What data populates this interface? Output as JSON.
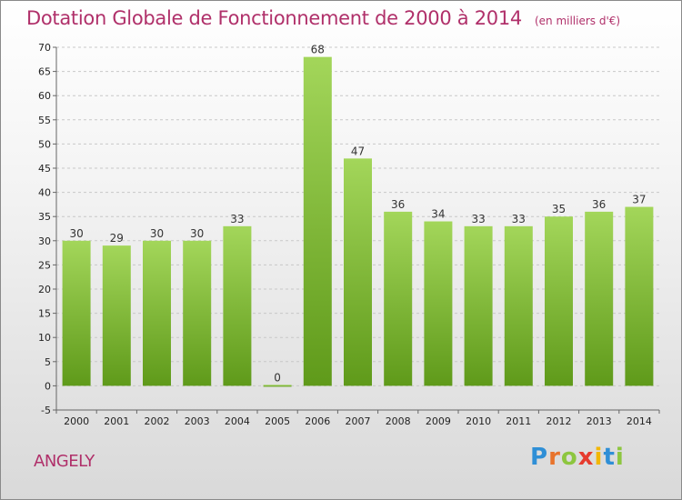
{
  "header": {
    "title": "Dotation Globale de Fonctionnement de 2000 à 2014",
    "unit": "(en milliers d'€)"
  },
  "footer": {
    "town": "ANGELY",
    "logo_letters": [
      "P",
      "r",
      "o",
      "x",
      "i",
      "t",
      "i"
    ],
    "logo_colors": [
      "#2f8fd6",
      "#e8732c",
      "#8dc63f",
      "#e63b2e",
      "#f2b705",
      "#2f8fd6",
      "#8dc63f"
    ]
  },
  "chart_data": {
    "type": "bar",
    "title": "Dotation Globale de Fonctionnement de 2000 à 2014",
    "subtitle": "(en milliers d'€)",
    "categories": [
      "2000",
      "2001",
      "2002",
      "2003",
      "2004",
      "2005",
      "2006",
      "2007",
      "2008",
      "2009",
      "2010",
      "2011",
      "2012",
      "2013",
      "2014"
    ],
    "values": [
      30,
      29,
      30,
      30,
      33,
      0,
      68,
      47,
      36,
      34,
      33,
      33,
      35,
      36,
      37
    ],
    "ylim": [
      -5,
      70
    ],
    "yticks": [
      -5,
      0,
      5,
      10,
      15,
      20,
      25,
      30,
      35,
      40,
      45,
      50,
      55,
      60,
      65,
      70
    ],
    "grid": true,
    "bar_color_top": "#a3d65a",
    "bar_color_bottom": "#5f9a1a"
  }
}
